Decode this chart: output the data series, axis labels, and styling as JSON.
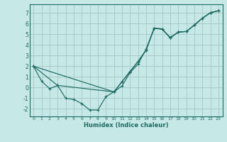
{
  "xlabel": "Humidex (Indice chaleur)",
  "bg_color": "#c6e8e6",
  "grid_color": "#a8ccca",
  "line_color": "#1e6b64",
  "spine_color": "#1e6b64",
  "xlim": [
    -0.5,
    23.5
  ],
  "ylim": [
    -2.7,
    7.8
  ],
  "xticks": [
    0,
    1,
    2,
    3,
    4,
    5,
    6,
    7,
    8,
    9,
    10,
    11,
    12,
    13,
    14,
    15,
    16,
    17,
    18,
    19,
    20,
    21,
    22,
    23
  ],
  "yticks": [
    -2,
    -1,
    0,
    1,
    2,
    3,
    4,
    5,
    6,
    7
  ],
  "line1_x": [
    0,
    1,
    2,
    3,
    4,
    5,
    6,
    7,
    8,
    9,
    10,
    11,
    12,
    13,
    14,
    15,
    16,
    17,
    18,
    19,
    20,
    21,
    22,
    23
  ],
  "line1_y": [
    2.0,
    0.6,
    -0.1,
    0.2,
    -1.0,
    -1.1,
    -1.5,
    -2.1,
    -2.1,
    -0.85,
    -0.4,
    0.15,
    1.4,
    2.2,
    3.6,
    5.55,
    5.45,
    4.7,
    5.2,
    5.25,
    5.85,
    6.5,
    7.0,
    7.2
  ],
  "line2_x": [
    0,
    3,
    10,
    11,
    12,
    13,
    14,
    15,
    16,
    17,
    18,
    19,
    20,
    21,
    22,
    23
  ],
  "line2_y": [
    2.0,
    0.2,
    -0.4,
    0.55,
    1.5,
    2.45,
    3.5,
    5.55,
    5.5,
    4.65,
    5.2,
    5.25,
    5.85,
    6.5,
    7.0,
    7.2
  ],
  "line3_x": [
    0,
    10,
    11,
    12,
    13,
    14,
    15,
    16,
    17,
    18,
    19,
    20,
    21,
    22,
    23
  ],
  "line3_y": [
    2.0,
    -0.4,
    0.55,
    1.5,
    2.45,
    3.5,
    5.55,
    5.5,
    4.65,
    5.2,
    5.25,
    5.85,
    6.5,
    7.0,
    7.2
  ],
  "xlabel_fontsize": 6.0,
  "tick_fontsize_x": 4.5,
  "tick_fontsize_y": 5.5,
  "linewidth": 0.85,
  "markersize": 2.5,
  "markeredgewidth": 0.8
}
